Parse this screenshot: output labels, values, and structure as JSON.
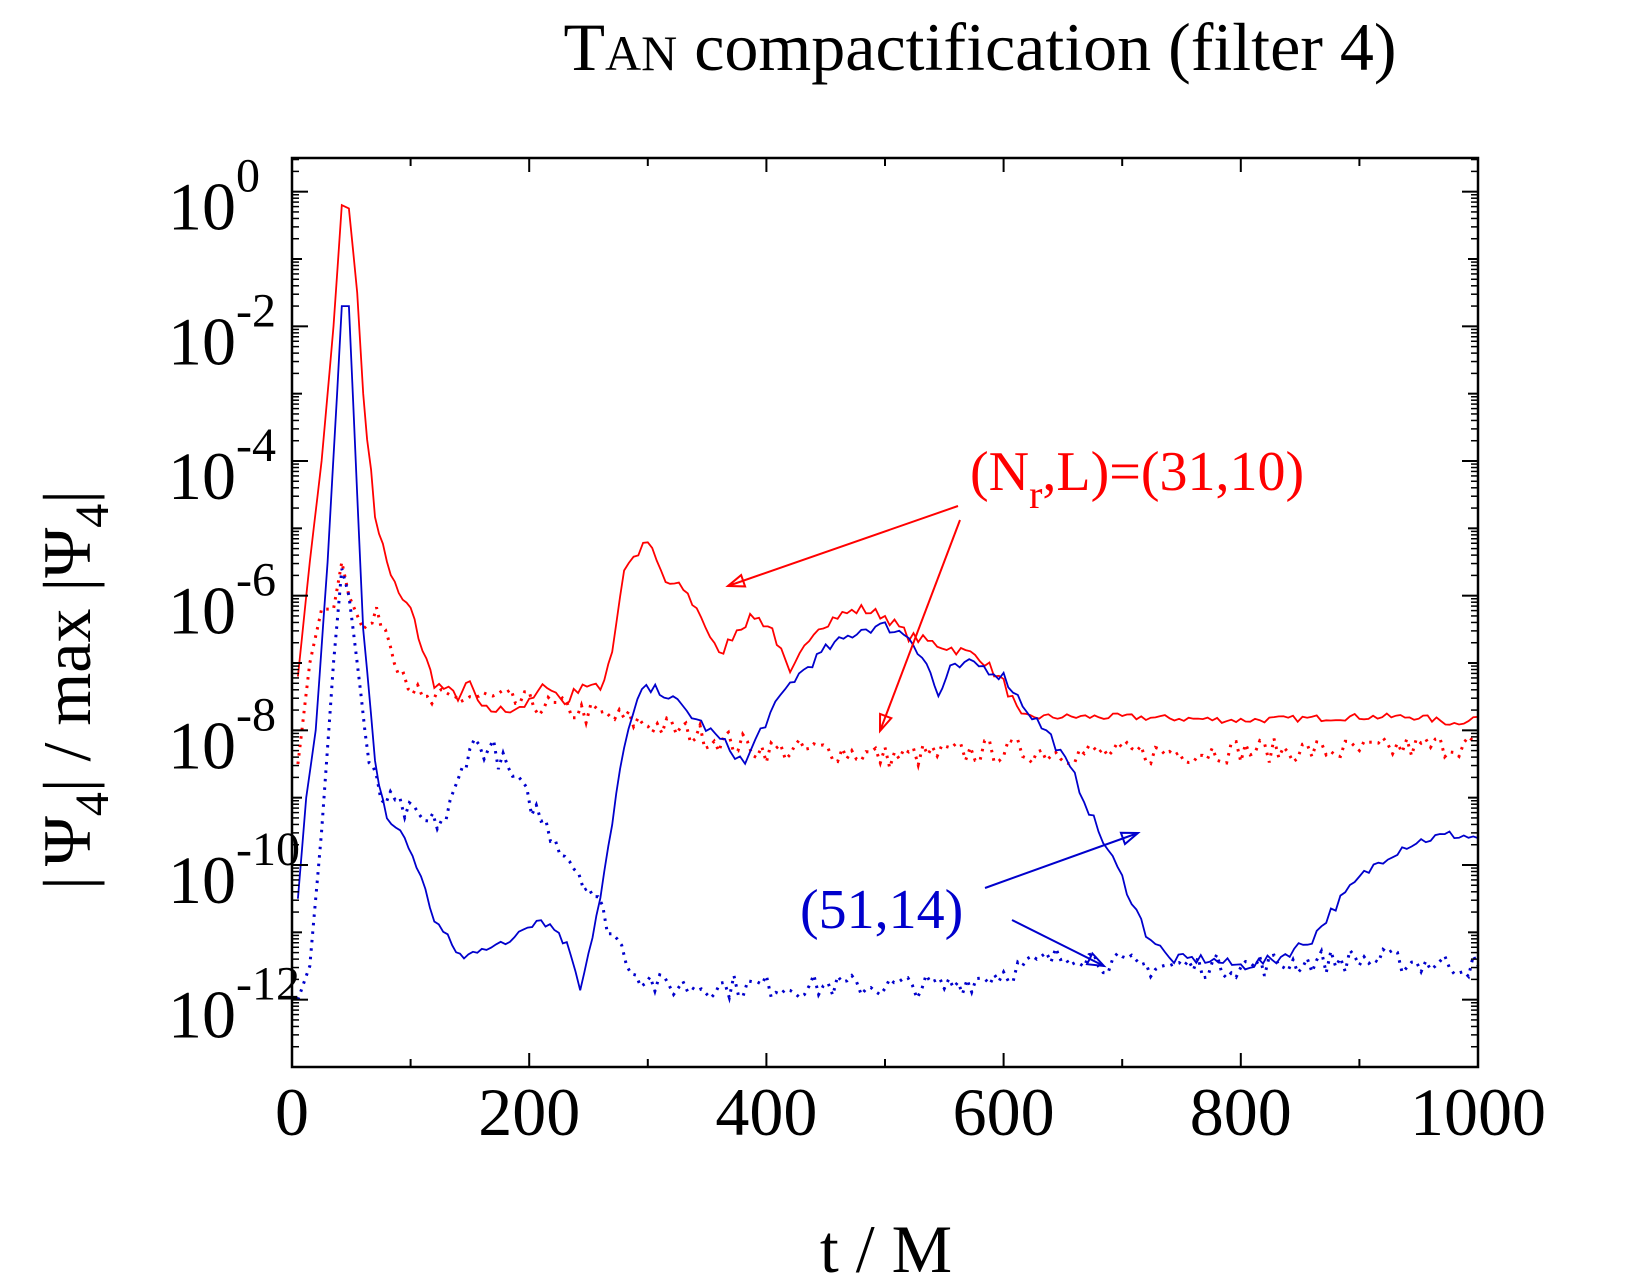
{
  "chart_data": {
    "type": "line",
    "title_part1": "T",
    "title_part2": "AN",
    "title_part3": " compactification (filter 4)",
    "xlabel": "t / M",
    "ylabel_parts": [
      "|",
      "Ψ",
      "4",
      "|",
      " / max ",
      "|",
      "Ψ",
      "4",
      "|"
    ],
    "xlim": [
      0,
      1000
    ],
    "ylim_log10": [
      -13,
      0.5
    ],
    "y_scale": "log",
    "x_ticks": [
      0,
      200,
      400,
      600,
      800,
      1000
    ],
    "x_tick_labels": [
      "0",
      "200",
      "400",
      "600",
      "800",
      "1000"
    ],
    "y_ticks_log10": [
      0,
      -2,
      -4,
      -6,
      -8,
      -10,
      -12
    ],
    "y_tick_base": "10",
    "y_tick_exponents": [
      "0",
      "-2",
      "-4",
      "-6",
      "-8",
      "-10",
      "-12"
    ],
    "colors": {
      "red": "#ff0000",
      "blue": "#0000cc"
    },
    "series": [
      {
        "name": "(Nr,L)=(31,10)",
        "color": "#ff0000",
        "style": "solid",
        "points_log10": [
          [
            5,
            -7.2
          ],
          [
            15,
            -5.5
          ],
          [
            25,
            -4.0
          ],
          [
            35,
            -2.0
          ],
          [
            42,
            -0.2
          ],
          [
            48,
            -0.25
          ],
          [
            55,
            -1.5
          ],
          [
            60,
            -3.0
          ],
          [
            70,
            -4.8
          ],
          [
            80,
            -5.5
          ],
          [
            90,
            -6.0
          ],
          [
            100,
            -6.2
          ],
          [
            110,
            -6.8
          ],
          [
            120,
            -7.3
          ],
          [
            140,
            -7.5
          ],
          [
            150,
            -7.3
          ],
          [
            160,
            -7.7
          ],
          [
            180,
            -7.7
          ],
          [
            200,
            -7.6
          ],
          [
            215,
            -7.3
          ],
          [
            230,
            -7.6
          ],
          [
            245,
            -7.3
          ],
          [
            260,
            -7.4
          ],
          [
            270,
            -6.8
          ],
          [
            280,
            -5.6
          ],
          [
            300,
            -5.2
          ],
          [
            315,
            -5.8
          ],
          [
            330,
            -5.9
          ],
          [
            345,
            -6.3
          ],
          [
            360,
            -6.9
          ],
          [
            375,
            -6.5
          ],
          [
            390,
            -6.3
          ],
          [
            405,
            -6.5
          ],
          [
            420,
            -7.2
          ],
          [
            440,
            -6.5
          ],
          [
            460,
            -6.3
          ],
          [
            480,
            -6.2
          ],
          [
            500,
            -6.3
          ],
          [
            520,
            -6.6
          ],
          [
            540,
            -6.7
          ],
          [
            560,
            -6.8
          ],
          [
            580,
            -6.9
          ],
          [
            600,
            -7.3
          ],
          [
            615,
            -7.8
          ],
          [
            630,
            -7.8
          ],
          [
            700,
            -7.8
          ],
          [
            800,
            -7.85
          ],
          [
            900,
            -7.8
          ],
          [
            950,
            -7.8
          ],
          [
            980,
            -7.9
          ],
          [
            1000,
            -7.8
          ]
        ]
      },
      {
        "name": "(Nr,L)=(31,10) dotted",
        "color": "#ff0000",
        "style": "dotted",
        "points_log10": [
          [
            5,
            -8.5
          ],
          [
            15,
            -7.0
          ],
          [
            25,
            -6.2
          ],
          [
            35,
            -6.2
          ],
          [
            42,
            -5.5
          ],
          [
            48,
            -6.0
          ],
          [
            60,
            -6.5
          ],
          [
            75,
            -6.3
          ],
          [
            90,
            -7.0
          ],
          [
            110,
            -7.6
          ],
          [
            150,
            -7.5
          ],
          [
            200,
            -7.6
          ],
          [
            300,
            -7.9
          ],
          [
            400,
            -8.3
          ],
          [
            460,
            -8.3
          ],
          [
            500,
            -8.4
          ],
          [
            600,
            -8.3
          ],
          [
            700,
            -8.35
          ],
          [
            800,
            -8.3
          ],
          [
            900,
            -8.3
          ],
          [
            1000,
            -8.2
          ]
        ]
      },
      {
        "name": "(51,14)",
        "color": "#0000cc",
        "style": "solid",
        "points_log10": [
          [
            5,
            -10.5
          ],
          [
            12,
            -9.0
          ],
          [
            20,
            -8.0
          ],
          [
            30,
            -5.5
          ],
          [
            38,
            -3.0
          ],
          [
            42,
            -1.7
          ],
          [
            48,
            -1.7
          ],
          [
            55,
            -4.5
          ],
          [
            60,
            -6.5
          ],
          [
            70,
            -8.5
          ],
          [
            80,
            -9.3
          ],
          [
            95,
            -9.6
          ],
          [
            105,
            -10.0
          ],
          [
            120,
            -10.8
          ],
          [
            135,
            -11.2
          ],
          [
            145,
            -11.4
          ],
          [
            160,
            -11.2
          ],
          [
            180,
            -11.2
          ],
          [
            195,
            -10.9
          ],
          [
            210,
            -10.8
          ],
          [
            225,
            -11.0
          ],
          [
            235,
            -11.3
          ],
          [
            243,
            -11.8
          ],
          [
            250,
            -11.3
          ],
          [
            260,
            -10.5
          ],
          [
            270,
            -9.4
          ],
          [
            280,
            -8.2
          ],
          [
            295,
            -7.4
          ],
          [
            310,
            -7.4
          ],
          [
            325,
            -7.6
          ],
          [
            345,
            -7.9
          ],
          [
            365,
            -8.2
          ],
          [
            382,
            -8.5
          ],
          [
            395,
            -8.0
          ],
          [
            420,
            -7.3
          ],
          [
            450,
            -6.8
          ],
          [
            480,
            -6.5
          ],
          [
            500,
            -6.45
          ],
          [
            520,
            -6.6
          ],
          [
            535,
            -7.0
          ],
          [
            545,
            -7.5
          ],
          [
            555,
            -7.1
          ],
          [
            575,
            -7.0
          ],
          [
            600,
            -7.2
          ],
          [
            620,
            -7.7
          ],
          [
            640,
            -8.1
          ],
          [
            660,
            -8.7
          ],
          [
            680,
            -9.5
          ],
          [
            700,
            -10.2
          ],
          [
            720,
            -11.0
          ],
          [
            740,
            -11.4
          ],
          [
            770,
            -11.4
          ],
          [
            800,
            -11.5
          ],
          [
            830,
            -11.4
          ],
          [
            860,
            -11.1
          ],
          [
            880,
            -10.6
          ],
          [
            900,
            -10.2
          ],
          [
            920,
            -9.9
          ],
          [
            940,
            -9.7
          ],
          [
            960,
            -9.6
          ],
          [
            980,
            -9.55
          ],
          [
            1000,
            -9.6
          ]
        ]
      },
      {
        "name": "(51,14) dotted",
        "color": "#0000cc",
        "style": "dotted",
        "points_log10": [
          [
            5,
            -12.0
          ],
          [
            15,
            -11.5
          ],
          [
            25,
            -9.5
          ],
          [
            35,
            -7.0
          ],
          [
            42,
            -5.6
          ],
          [
            48,
            -6.0
          ],
          [
            55,
            -7.0
          ],
          [
            65,
            -8.5
          ],
          [
            75,
            -9.0
          ],
          [
            95,
            -9.2
          ],
          [
            115,
            -9.4
          ],
          [
            130,
            -9.3
          ],
          [
            140,
            -8.8
          ],
          [
            150,
            -8.2
          ],
          [
            170,
            -8.3
          ],
          [
            190,
            -8.8
          ],
          [
            210,
            -9.3
          ],
          [
            230,
            -9.8
          ],
          [
            250,
            -10.3
          ],
          [
            270,
            -11.0
          ],
          [
            290,
            -11.6
          ],
          [
            310,
            -11.8
          ],
          [
            400,
            -11.8
          ],
          [
            500,
            -11.8
          ],
          [
            550,
            -11.8
          ],
          [
            600,
            -11.6
          ],
          [
            640,
            -11.4
          ],
          [
            660,
            -11.3
          ],
          [
            700,
            -11.5
          ],
          [
            800,
            -11.5
          ],
          [
            900,
            -11.4
          ],
          [
            1000,
            -11.5
          ]
        ]
      }
    ],
    "annotations": [
      {
        "text_a": "(N",
        "text_sub": "r",
        "text_b": ",L)=(31,10)",
        "color": "#ff0000"
      },
      {
        "text": "(51,14)",
        "color": "#0000cc"
      }
    ],
    "grid": false,
    "legend": "none"
  }
}
